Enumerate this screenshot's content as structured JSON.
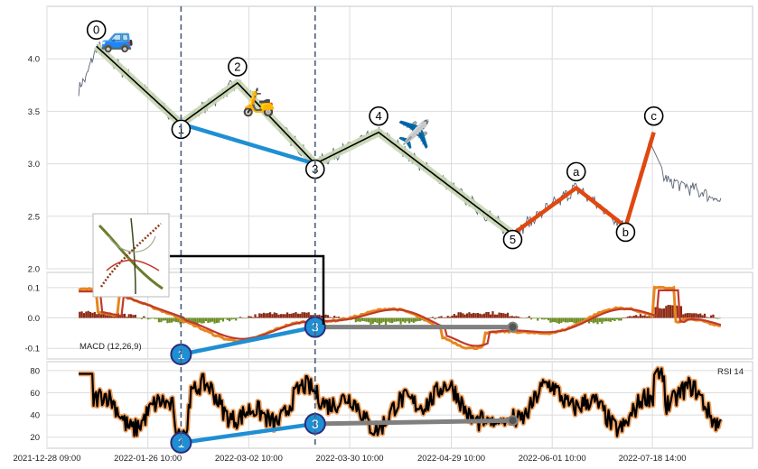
{
  "chart_data": {
    "type": "line",
    "x_tick_labels": [
      "2021-12-28 09:00",
      "2022-01-26 10:00",
      "2022-03-02 10:00",
      "2022-03-30 10:00",
      "2022-04-29 10:00",
      "2022-06-01 10:00",
      "2022-07-18 14:00"
    ],
    "price_panel": {
      "ylim": [
        2.0,
        4.5
      ],
      "yticks": [
        "2.0",
        "2.5",
        "3.0",
        "3.5",
        "4.0"
      ],
      "wave_points": [
        {
          "label": "0",
          "x": 0.07,
          "y": 4.12
        },
        {
          "label": "1",
          "x": 0.19,
          "y": 3.38
        },
        {
          "label": "2",
          "x": 0.27,
          "y": 3.77
        },
        {
          "label": "3",
          "x": 0.38,
          "y": 3.0
        },
        {
          "label": "4",
          "x": 0.47,
          "y": 3.3
        },
        {
          "label": "5",
          "x": 0.66,
          "y": 2.33
        }
      ],
      "correction_points": [
        {
          "label": "5",
          "x": 0.66,
          "y": 2.33
        },
        {
          "label": "a",
          "x": 0.75,
          "y": 2.77
        },
        {
          "label": "b",
          "x": 0.82,
          "y": 2.4
        },
        {
          "label": "c",
          "x": 0.86,
          "y": 3.3
        }
      ],
      "divergence_line": [
        {
          "x": 0.19,
          "y": 3.38
        },
        {
          "x": 0.38,
          "y": 3.0
        }
      ],
      "emoji_markers": [
        {
          "glyph": "🚙",
          "x": 0.1,
          "y": 4.2
        },
        {
          "glyph": "🛵",
          "x": 0.3,
          "y": 3.59
        },
        {
          "glyph": "✈️",
          "x": 0.52,
          "y": 3.28
        }
      ]
    },
    "macd_panel": {
      "label": "MACD (12,26,9)",
      "ylim": [
        -0.135,
        0.15
      ],
      "yticks": [
        "-0.1",
        "0.0",
        "0.1"
      ],
      "markers": [
        {
          "label": "1",
          "x": 0.19,
          "y": -0.12
        },
        {
          "label": "3",
          "x": 0.38,
          "y": -0.03
        }
      ],
      "tail_point": {
        "x": 0.66,
        "y": -0.03
      }
    },
    "rsi_panel": {
      "label": "RSI 14",
      "ylim": [
        10,
        88
      ],
      "yticks": [
        "20",
        "40",
        "60",
        "80"
      ],
      "markers": [
        {
          "label": "1",
          "x": 0.19,
          "y": 15
        },
        {
          "label": "3",
          "x": 0.38,
          "y": 32
        }
      ],
      "tail_point": {
        "x": 0.66,
        "y": 35
      }
    },
    "vertical_markers_x": [
      0.19,
      0.38
    ],
    "grid": true,
    "colors": {
      "price": "#5a6374",
      "wave": "#000000",
      "wave_halo": "#c9d7b4",
      "correction": "#e0480f",
      "divergence": "#1f8fd4",
      "tail": "#808080",
      "macd_line": "#e8861d",
      "signal_line": "#c0392b",
      "hist_pos": "#8b2a14",
      "hist_neg": "#6b8e23",
      "rsi_line": "#000000",
      "rsi_halo": "#f0a15e",
      "marker_fill": "#1f8fd4",
      "marker_edge": "#2a2b7a"
    }
  }
}
